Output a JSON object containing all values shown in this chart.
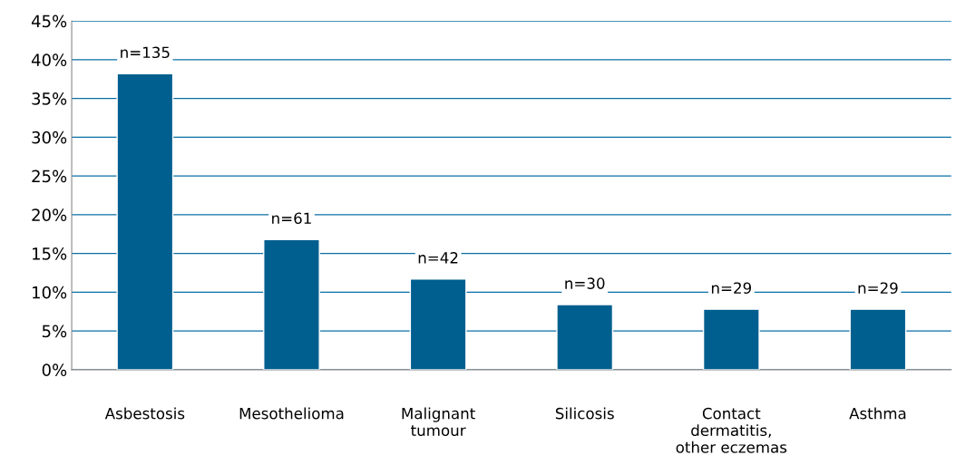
{
  "chart_data": {
    "type": "bar",
    "categories": [
      "Asbestosis",
      "Mesothelioma",
      "Malignant\ntumour",
      "Silicosis",
      "Contact\ndermatitis,\nother eczemas",
      "Asthma"
    ],
    "values": [
      38.2,
      16.8,
      11.7,
      8.4,
      7.8,
      7.8
    ],
    "annotations": [
      {
        "text": "n=135",
        "x": "Asbestosis",
        "y": 38.2
      },
      {
        "text": "n=61",
        "x": "Mesothelioma",
        "y": 16.8
      },
      {
        "text": "n=42",
        "x": "Malignant\ntumour",
        "y": 11.7
      },
      {
        "text": "n=30",
        "x": "Silicosis",
        "y": 8.4
      },
      {
        "text": "n=29",
        "x": "Contact\ndermatitis,\nother eczemas",
        "y": 7.8
      },
      {
        "text": "n=29",
        "x": "Asthma",
        "y": 7.8
      }
    ],
    "color": "#005f8f",
    "ylim": [
      0,
      45
    ],
    "yticks": [
      {
        "value": 0,
        "label": "0%"
      },
      {
        "value": 5,
        "label": "5%"
      },
      {
        "value": 10,
        "label": "10%"
      },
      {
        "value": 15,
        "label": "15%"
      },
      {
        "value": 20,
        "label": "20%"
      },
      {
        "value": 25,
        "label": "25%"
      },
      {
        "value": 30,
        "label": "30%"
      },
      {
        "value": 35,
        "label": "35%"
      },
      {
        "value": 40,
        "label": "40%"
      },
      {
        "value": 45,
        "label": "45%"
      }
    ],
    "grid": "y",
    "legend": false
  }
}
